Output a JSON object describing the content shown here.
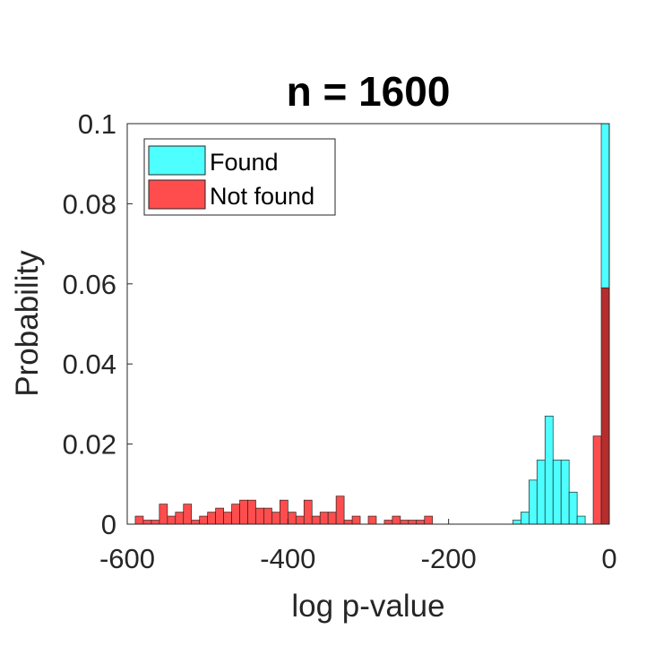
{
  "chart_data": {
    "type": "bar",
    "title": "n = 1600",
    "xlabel": "log p-value",
    "ylabel": "Probability",
    "xlim": [
      -600,
      0
    ],
    "ylim": [
      0,
      0.1
    ],
    "xticks": [
      "-600",
      "-400",
      "-200",
      "0"
    ],
    "yticks": [
      "0",
      "0.02",
      "0.04",
      "0.06",
      "0.08",
      "0.1"
    ],
    "bin_width": 10,
    "legend_position": "top-left",
    "grid": false,
    "series": [
      {
        "name": "Found",
        "color": "#4dffff",
        "bins": [
          {
            "x0": -120,
            "x1": -110,
            "y": 0.001
          },
          {
            "x0": -110,
            "x1": -100,
            "y": 0.003
          },
          {
            "x0": -100,
            "x1": -90,
            "y": 0.011
          },
          {
            "x0": -90,
            "x1": -80,
            "y": 0.016
          },
          {
            "x0": -80,
            "x1": -70,
            "y": 0.027
          },
          {
            "x0": -70,
            "x1": -60,
            "y": 0.016
          },
          {
            "x0": -60,
            "x1": -50,
            "y": 0.016
          },
          {
            "x0": -50,
            "x1": -40,
            "y": 0.008
          },
          {
            "x0": -40,
            "x1": -30,
            "y": 0.002
          },
          {
            "x0": -10,
            "x1": 0,
            "y": 0.1
          }
        ]
      },
      {
        "name": "Not found",
        "color": "#ff4d4d",
        "bins": [
          {
            "x0": -590,
            "x1": -580,
            "y": 0.002
          },
          {
            "x0": -580,
            "x1": -570,
            "y": 0.001
          },
          {
            "x0": -570,
            "x1": -560,
            "y": 0.001
          },
          {
            "x0": -560,
            "x1": -550,
            "y": 0.005
          },
          {
            "x0": -550,
            "x1": -540,
            "y": 0.002
          },
          {
            "x0": -540,
            "x1": -530,
            "y": 0.003
          },
          {
            "x0": -530,
            "x1": -520,
            "y": 0.005
          },
          {
            "x0": -520,
            "x1": -510,
            "y": 0.001
          },
          {
            "x0": -510,
            "x1": -500,
            "y": 0.002
          },
          {
            "x0": -500,
            "x1": -490,
            "y": 0.003
          },
          {
            "x0": -490,
            "x1": -480,
            "y": 0.004
          },
          {
            "x0": -480,
            "x1": -470,
            "y": 0.003
          },
          {
            "x0": -470,
            "x1": -460,
            "y": 0.005
          },
          {
            "x0": -460,
            "x1": -450,
            "y": 0.006
          },
          {
            "x0": -450,
            "x1": -440,
            "y": 0.006
          },
          {
            "x0": -440,
            "x1": -430,
            "y": 0.004
          },
          {
            "x0": -430,
            "x1": -420,
            "y": 0.004
          },
          {
            "x0": -420,
            "x1": -410,
            "y": 0.003
          },
          {
            "x0": -410,
            "x1": -400,
            "y": 0.006
          },
          {
            "x0": -400,
            "x1": -390,
            "y": 0.003
          },
          {
            "x0": -390,
            "x1": -380,
            "y": 0.002
          },
          {
            "x0": -380,
            "x1": -370,
            "y": 0.006
          },
          {
            "x0": -370,
            "x1": -360,
            "y": 0.002
          },
          {
            "x0": -360,
            "x1": -350,
            "y": 0.003
          },
          {
            "x0": -350,
            "x1": -340,
            "y": 0.003
          },
          {
            "x0": -340,
            "x1": -330,
            "y": 0.007
          },
          {
            "x0": -330,
            "x1": -320,
            "y": 0.001
          },
          {
            "x0": -320,
            "x1": -310,
            "y": 0.002
          },
          {
            "x0": -300,
            "x1": -290,
            "y": 0.002
          },
          {
            "x0": -280,
            "x1": -270,
            "y": 0.001
          },
          {
            "x0": -270,
            "x1": -260,
            "y": 0.002
          },
          {
            "x0": -260,
            "x1": -250,
            "y": 0.001
          },
          {
            "x0": -250,
            "x1": -240,
            "y": 0.001
          },
          {
            "x0": -240,
            "x1": -230,
            "y": 0.001
          },
          {
            "x0": -230,
            "x1": -220,
            "y": 0.002
          },
          {
            "x0": -20,
            "x1": -10,
            "y": 0.022
          },
          {
            "x0": -10,
            "x1": 0,
            "y": 0.059
          }
        ]
      }
    ],
    "overlap_color": "#b52d2d"
  }
}
